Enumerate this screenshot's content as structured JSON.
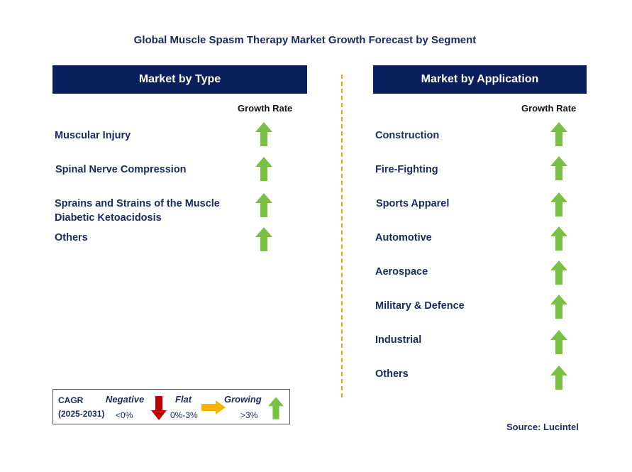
{
  "title": "Global Muscle Spasm Therapy Market Growth Forecast by Segment",
  "left_panel": {
    "header": "Market by Type",
    "growth_label": "Growth Rate",
    "items": [
      {
        "label": "Muscular Injury",
        "trend": "growing"
      },
      {
        "label": "Spinal Nerve Compression",
        "trend": "growing"
      },
      {
        "label": "Sprains and Strains of the Muscle",
        "label2": "Diabetic Ketoacidosis",
        "trend": "growing"
      },
      {
        "label": "Others",
        "trend": "growing"
      }
    ]
  },
  "right_panel": {
    "header": "Market by Application",
    "growth_label": "Growth Rate",
    "items": [
      {
        "label": "Construction",
        "trend": "growing"
      },
      {
        "label": "Fire-Fighting",
        "trend": "growing"
      },
      {
        "label": "Sports Apparel",
        "trend": "growing"
      },
      {
        "label": "Automotive",
        "trend": "growing"
      },
      {
        "label": "Aerospace",
        "trend": "growing"
      },
      {
        "label": "Military & Defence",
        "trend": "growing"
      },
      {
        "label": "Industrial",
        "trend": "growing"
      },
      {
        "label": "Others",
        "trend": "growing"
      }
    ]
  },
  "legend": {
    "cagr_label": "CAGR",
    "period": "(2025-2031)",
    "negative": {
      "label": "Negative",
      "range": "<0%",
      "color": "#c00000",
      "icon": "down-arrow-icon"
    },
    "flat": {
      "label": "Flat",
      "range": "0%-3%",
      "color": "#f5b400",
      "icon": "right-arrow-icon"
    },
    "growing": {
      "label": "Growing",
      "range": ">3%",
      "color": "#7ac143",
      "icon": "up-arrow-icon"
    }
  },
  "source": "Source: Lucintel",
  "colors": {
    "header_bg": "#0b1f5c",
    "divider": "#f5a300",
    "up_arrow": "#7ac143"
  }
}
